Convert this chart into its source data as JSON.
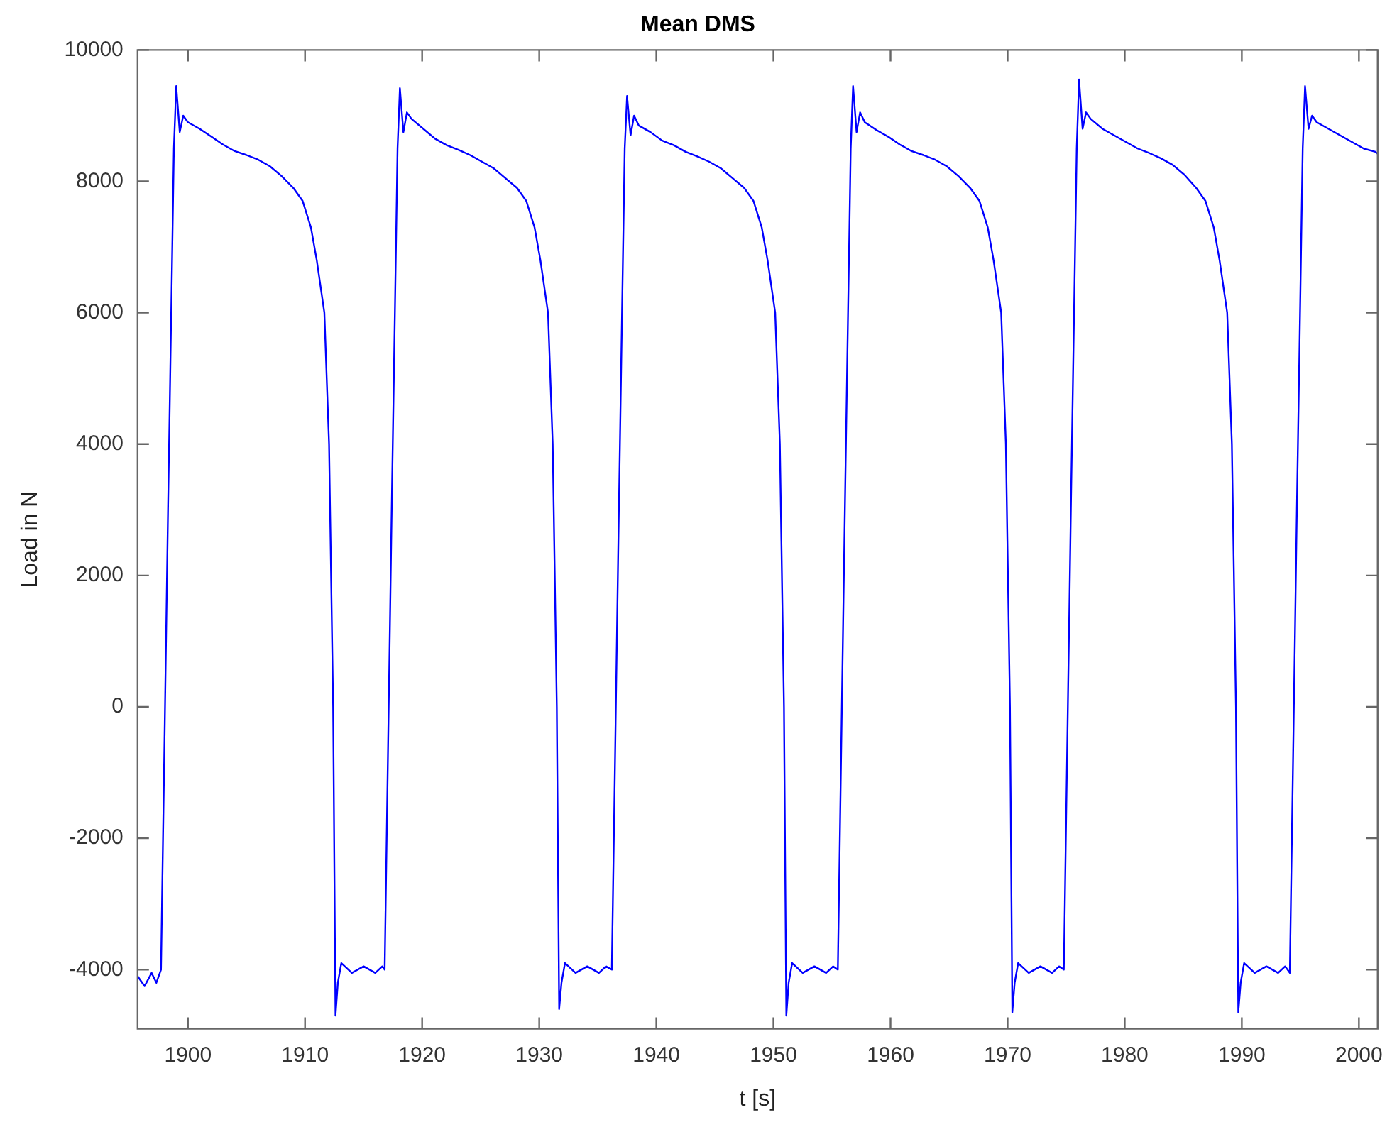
{
  "chart_data": {
    "type": "line",
    "title": "Mean DMS",
    "xlabel": "t [s]",
    "ylabel": "Load in N",
    "xlim": [
      1895.7,
      2001.6
    ],
    "ylim": [
      -4900,
      10000
    ],
    "xticks": [
      1900,
      1910,
      1920,
      1930,
      1940,
      1950,
      1960,
      1970,
      1980,
      1990,
      2000
    ],
    "yticks": [
      -4000,
      -2000,
      0,
      2000,
      4000,
      6000,
      8000,
      10000
    ],
    "series": [
      {
        "color": "#0000ff",
        "x": [
          1895.7,
          1896.3,
          1896.9,
          1897.3,
          1897.7,
          1898.3,
          1898.8,
          1899.0,
          1899.3,
          1899.6,
          1900.0,
          1901.0,
          1902.0,
          1903.0,
          1904.0,
          1905.0,
          1906.0,
          1907.0,
          1908.0,
          1909.0,
          1909.8,
          1910.5,
          1911.0,
          1911.65,
          1912.05,
          1912.4,
          1912.6,
          1912.8,
          1913.1,
          1914.0,
          1915.0,
          1916.0,
          1916.6,
          1916.8,
          1917.4,
          1917.9,
          1918.1,
          1918.4,
          1918.7,
          1919.1,
          1920.1,
          1921.1,
          1922.1,
          1923.1,
          1924.1,
          1925.1,
          1926.1,
          1927.1,
          1928.1,
          1928.9,
          1929.6,
          1930.1,
          1930.75,
          1931.15,
          1931.5,
          1931.7,
          1931.9,
          1932.2,
          1933.1,
          1934.1,
          1935.1,
          1935.7,
          1936.2,
          1936.8,
          1937.3,
          1937.5,
          1937.8,
          1938.1,
          1938.5,
          1939.5,
          1940.5,
          1941.5,
          1942.5,
          1943.5,
          1944.5,
          1945.5,
          1946.5,
          1947.5,
          1948.3,
          1949.0,
          1949.5,
          1950.15,
          1950.55,
          1950.9,
          1951.1,
          1951.3,
          1951.6,
          1952.5,
          1953.5,
          1954.5,
          1955.1,
          1955.5,
          1956.1,
          1956.6,
          1956.8,
          1957.1,
          1957.4,
          1957.8,
          1958.8,
          1959.8,
          1960.8,
          1961.8,
          1962.8,
          1963.8,
          1964.8,
          1965.8,
          1966.8,
          1967.6,
          1968.3,
          1968.8,
          1969.45,
          1969.85,
          1970.2,
          1970.4,
          1970.6,
          1970.9,
          1971.8,
          1972.8,
          1973.8,
          1974.4,
          1974.8,
          1975.4,
          1975.9,
          1976.1,
          1976.4,
          1976.7,
          1977.1,
          1978.1,
          1979.1,
          1980.1,
          1981.1,
          1982.1,
          1983.1,
          1984.1,
          1985.1,
          1986.1,
          1986.9,
          1987.6,
          1988.1,
          1988.75,
          1989.15,
          1989.5,
          1989.7,
          1989.9,
          1990.2,
          1991.1,
          1992.1,
          1993.1,
          1993.7,
          1994.1,
          1994.7,
          1995.2,
          1995.4,
          1995.7,
          1996.0,
          1996.4,
          1997.4,
          1998.4,
          1999.4,
          2000.4,
          2001.4,
          2001.6
        ],
        "values": [
          -4100,
          -4250,
          -4050,
          -4200,
          -4000,
          3000,
          8500,
          9450,
          8750,
          9000,
          8900,
          8800,
          8680,
          8560,
          8460,
          8400,
          8330,
          8230,
          8080,
          7900,
          7700,
          7300,
          6800,
          6000,
          4000,
          0,
          -4700,
          -4200,
          -3900,
          -4050,
          -3950,
          -4050,
          -3950,
          -4000,
          3000,
          8500,
          9420,
          8750,
          9050,
          8950,
          8800,
          8650,
          8550,
          8480,
          8400,
          8300,
          8200,
          8050,
          7900,
          7700,
          7300,
          6800,
          6000,
          4000,
          0,
          -4600,
          -4200,
          -3900,
          -4050,
          -3950,
          -4050,
          -3950,
          -4000,
          3000,
          8500,
          9300,
          8700,
          9000,
          8850,
          8750,
          8620,
          8550,
          8450,
          8380,
          8300,
          8200,
          8050,
          7900,
          7700,
          7300,
          6800,
          6000,
          4000,
          0,
          -4700,
          -4200,
          -3900,
          -4050,
          -3950,
          -4050,
          -3950,
          -4000,
          3000,
          8500,
          9450,
          8750,
          9050,
          8900,
          8780,
          8680,
          8560,
          8460,
          8400,
          8330,
          8230,
          8080,
          7900,
          7700,
          7300,
          6800,
          6000,
          4000,
          0,
          -4650,
          -4200,
          -3900,
          -4050,
          -3950,
          -4050,
          -3950,
          -4000,
          3000,
          8500,
          9550,
          8800,
          9050,
          8950,
          8800,
          8700,
          8600,
          8500,
          8430,
          8350,
          8250,
          8100,
          7900,
          7700,
          7300,
          6800,
          6000,
          4000,
          0,
          -4650,
          -4200,
          -3900,
          -4050,
          -3950,
          -4050,
          -3950,
          -4050,
          3000,
          8500,
          9450,
          8800,
          9000,
          8900,
          8800,
          8700,
          8600,
          8500,
          8450,
          8420
        ]
      }
    ]
  }
}
